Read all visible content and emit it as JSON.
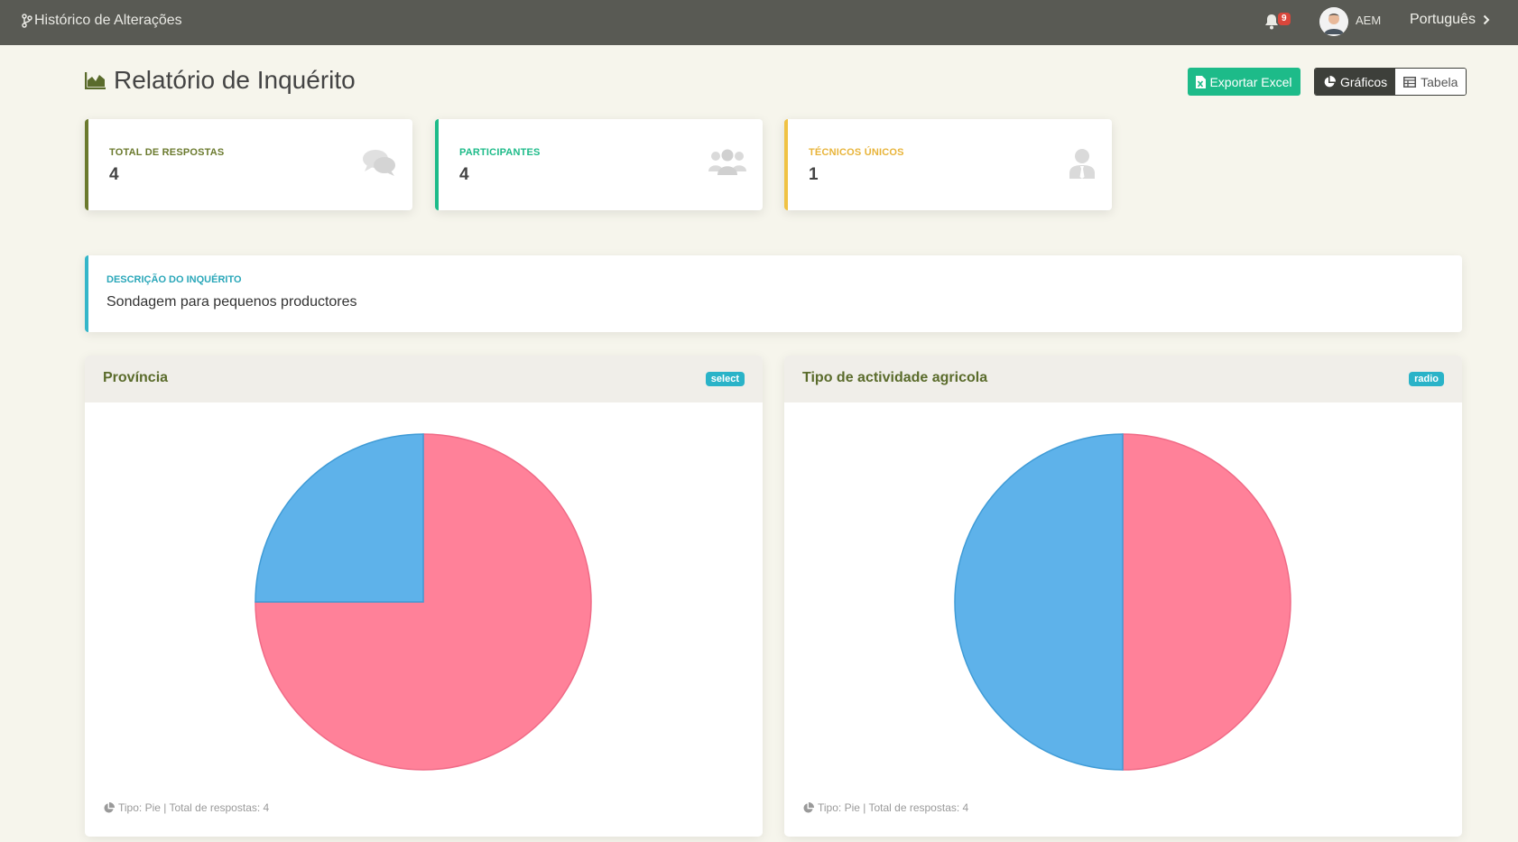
{
  "topbar": {
    "history_label": "Histórico de Alterações",
    "notification_count": "9",
    "user_initials": "AEM",
    "language": "Português"
  },
  "header": {
    "title": "Relatório de Inquérito",
    "export_label": "Exportar Excel",
    "view_charts_label": "Gráficos",
    "view_table_label": "Tabela"
  },
  "stats": [
    {
      "label": "TOTAL DE RESPOSTAS",
      "value": "4",
      "color": "#6b7a2e",
      "icon": "comments-icon"
    },
    {
      "label": "PARTICIPANTES",
      "value": "4",
      "color": "#1dbb89",
      "icon": "users-icon"
    },
    {
      "label": "TÉCNICOS ÚNICOS",
      "value": "1",
      "color": "#f0c244",
      "icon": "user-tie-icon"
    }
  ],
  "description": {
    "label": "DESCRIÇÃO DO INQUÉRITO",
    "text": "Sondagem para pequenos productores"
  },
  "charts": [
    {
      "title": "Província",
      "badge": "select",
      "footer": "Tipo: Pie | Total de respostas: 4"
    },
    {
      "title": "Tipo de actividade agricola",
      "badge": "radio",
      "footer": "Tipo: Pie | Total de respostas: 4"
    }
  ],
  "chart_data": [
    {
      "type": "pie",
      "title": "Província",
      "slices": [
        {
          "value": 3,
          "color": "#ff8199"
        },
        {
          "value": 1,
          "color": "#5eb2ea"
        }
      ]
    },
    {
      "type": "pie",
      "title": "Tipo de actividade agricola",
      "slices": [
        {
          "value": 2,
          "color": "#ff8199"
        },
        {
          "value": 2,
          "color": "#5eb2ea"
        }
      ]
    }
  ]
}
